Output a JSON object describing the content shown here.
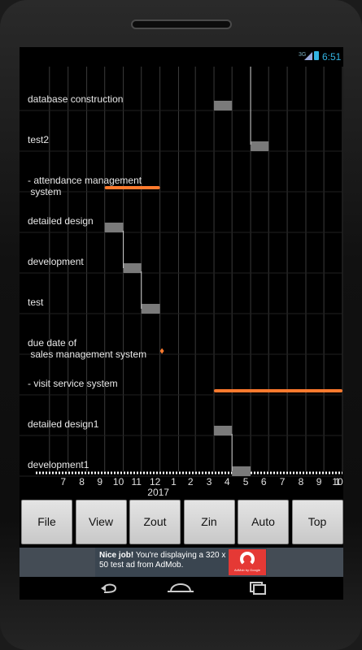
{
  "status_bar": {
    "network": "3G",
    "time": "6:51"
  },
  "chart_data": {
    "type": "gantt",
    "tasks": [
      {
        "name": "database construction",
        "kind": "task",
        "start": "2017-04-01",
        "end": "2017-05-01"
      },
      {
        "name": "test2",
        "kind": "task",
        "start": "2017-06-01",
        "end": "2017-07-01"
      },
      {
        "name": "- attendance management system",
        "kind": "summary",
        "start": "2016-10-01",
        "end": "2017-01-01"
      },
      {
        "name": "detailed design",
        "kind": "task",
        "start": "2016-10-01",
        "end": "2016-11-01"
      },
      {
        "name": "development",
        "kind": "task",
        "start": "2016-11-01",
        "end": "2016-12-01"
      },
      {
        "name": "test",
        "kind": "task",
        "start": "2016-12-01",
        "end": "2017-01-01"
      },
      {
        "name": "due date of sales management system",
        "kind": "milestone",
        "start": "2017-01-01",
        "end": "2017-01-01"
      },
      {
        "name": "- visit service system",
        "kind": "summary",
        "start": "2017-04-01",
        "end": "2017-11-01"
      },
      {
        "name": "detailed design1",
        "kind": "task",
        "start": "2017-04-01",
        "end": "2017-05-01"
      },
      {
        "name": "development1",
        "kind": "task",
        "start": "2017-05-01",
        "end": "2017-06-01"
      }
    ],
    "x_axis": {
      "tick_labels": [
        "7",
        "8",
        "9",
        "10",
        "11",
        "12",
        "1",
        "2",
        "3",
        "4",
        "5",
        "6",
        "7",
        "8",
        "9",
        "10",
        "1"
      ],
      "year_label": "2017",
      "range": [
        "2016-06-15",
        "2017-11-01"
      ]
    },
    "grid": true,
    "colors": {
      "task": "#7a7a7a",
      "summary": "#ff7a2e",
      "milestone": "#ff7a2e",
      "grid": "#3a3a3a",
      "dependency": "#d0d0d0"
    }
  },
  "toolbar": {
    "buttons": [
      {
        "id": "file",
        "label": "File"
      },
      {
        "id": "view",
        "label": "View"
      },
      {
        "id": "zout",
        "label": "Zout"
      },
      {
        "id": "zin",
        "label": "Zin"
      },
      {
        "id": "auto",
        "label": "Auto"
      },
      {
        "id": "top",
        "label": "Top"
      }
    ]
  },
  "ad": {
    "headline": "Nice job!",
    "body": "You're displaying a 320 x 50 test ad from AdMob.",
    "logo_caption": "AdMob by Google"
  },
  "nav": {
    "back_icon": "back-icon",
    "home_icon": "home-icon",
    "recents_icon": "recents-icon"
  }
}
